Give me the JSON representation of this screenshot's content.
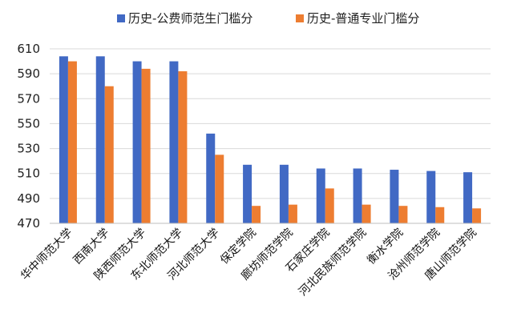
{
  "chart_data": {
    "type": "bar",
    "title": "",
    "xlabel": "",
    "ylabel": "",
    "ylim": [
      470,
      610
    ],
    "yticks": [
      470,
      490,
      510,
      530,
      550,
      570,
      590,
      610
    ],
    "grid": true,
    "legend_position": "top",
    "categories": [
      "华中师范大学",
      "西南大学",
      "陕西师范大学",
      "东北师范大学",
      "河北师范大学",
      "保定学院",
      "廊坊师范学院",
      "石家庄学院",
      "河北民族师范学院",
      "衡水学院",
      "沧州师范学院",
      "唐山师范学院"
    ],
    "series": [
      {
        "name": "历史-公费师范生门槛分",
        "color": "#4169c4",
        "values": [
          604,
          604,
          600,
          600,
          542,
          517,
          517,
          514,
          514,
          513,
          512,
          511
        ]
      },
      {
        "name": "历史-普通专业门槛分",
        "color": "#ed7d31",
        "values": [
          600,
          580,
          594,
          592,
          525,
          484,
          485,
          498,
          485,
          484,
          483,
          482
        ]
      }
    ]
  }
}
